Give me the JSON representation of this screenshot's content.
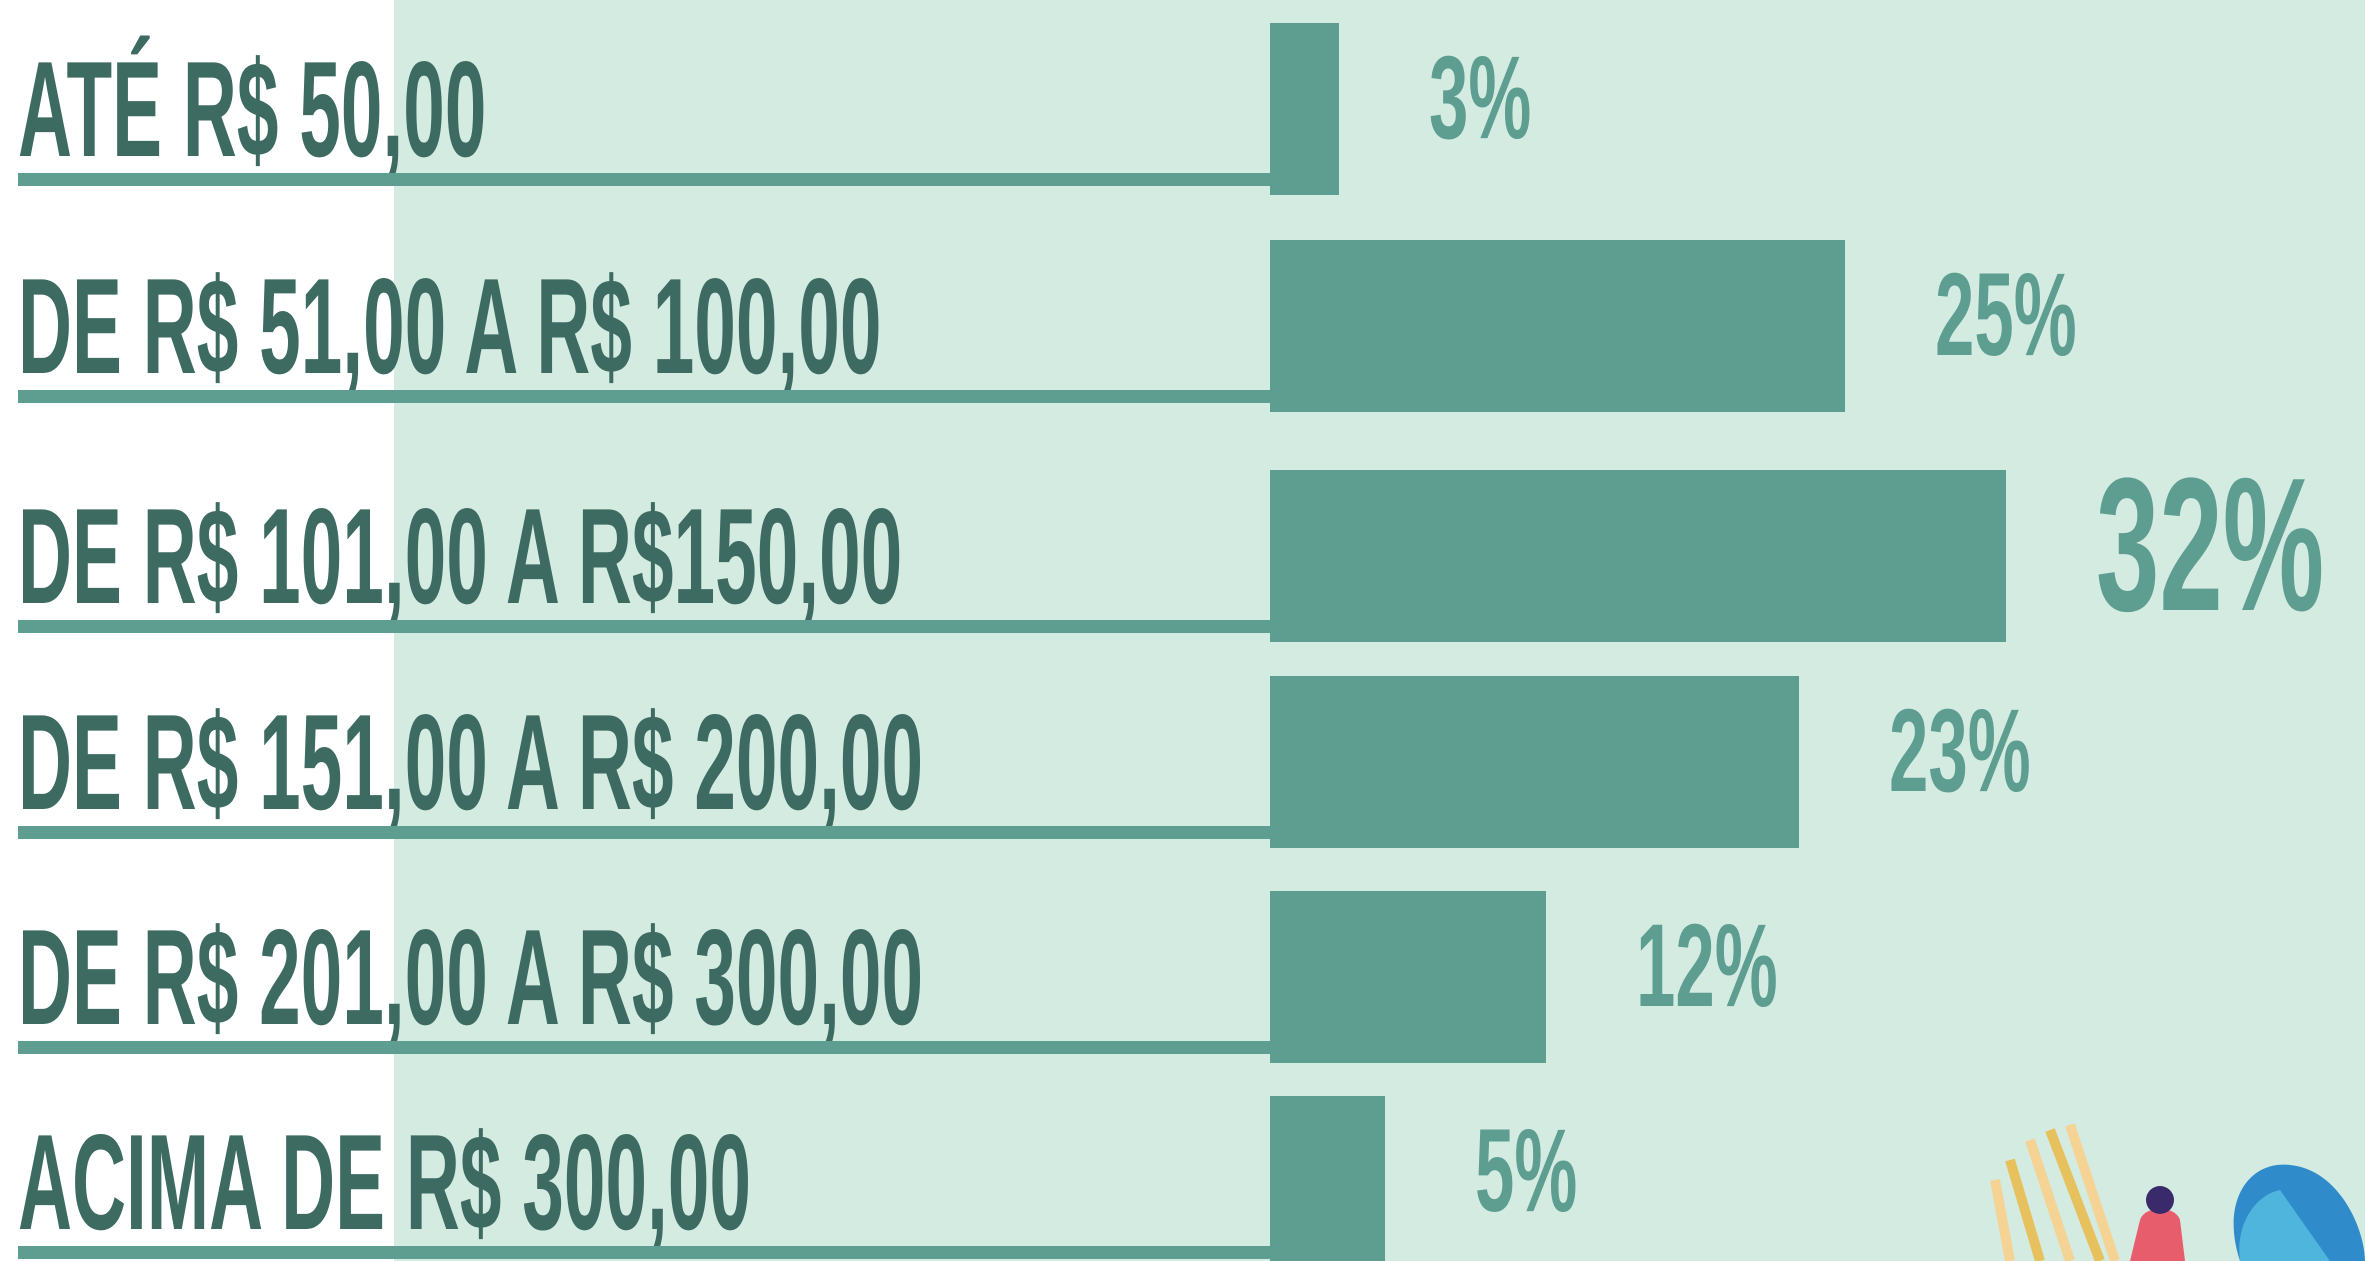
{
  "chart_data": {
    "type": "hbar",
    "categories": [
      "ATÉ R$ 50,00",
      "DE R$ 51,00 A R$ 100,00",
      "DE R$ 101,00 A R$150,00",
      "DE R$ 151,00 A R$ 200,00",
      "DE R$ 201,00 A R$ 300,00",
      "ACIMA DE R$ 300,00"
    ],
    "values": [
      3,
      25,
      32,
      23,
      12,
      5
    ],
    "value_labels": [
      "3%",
      "25%",
      "32%",
      "23%",
      "12%",
      "5%"
    ],
    "color": "#5e9e91",
    "label_color": "#3d6b62"
  }
}
